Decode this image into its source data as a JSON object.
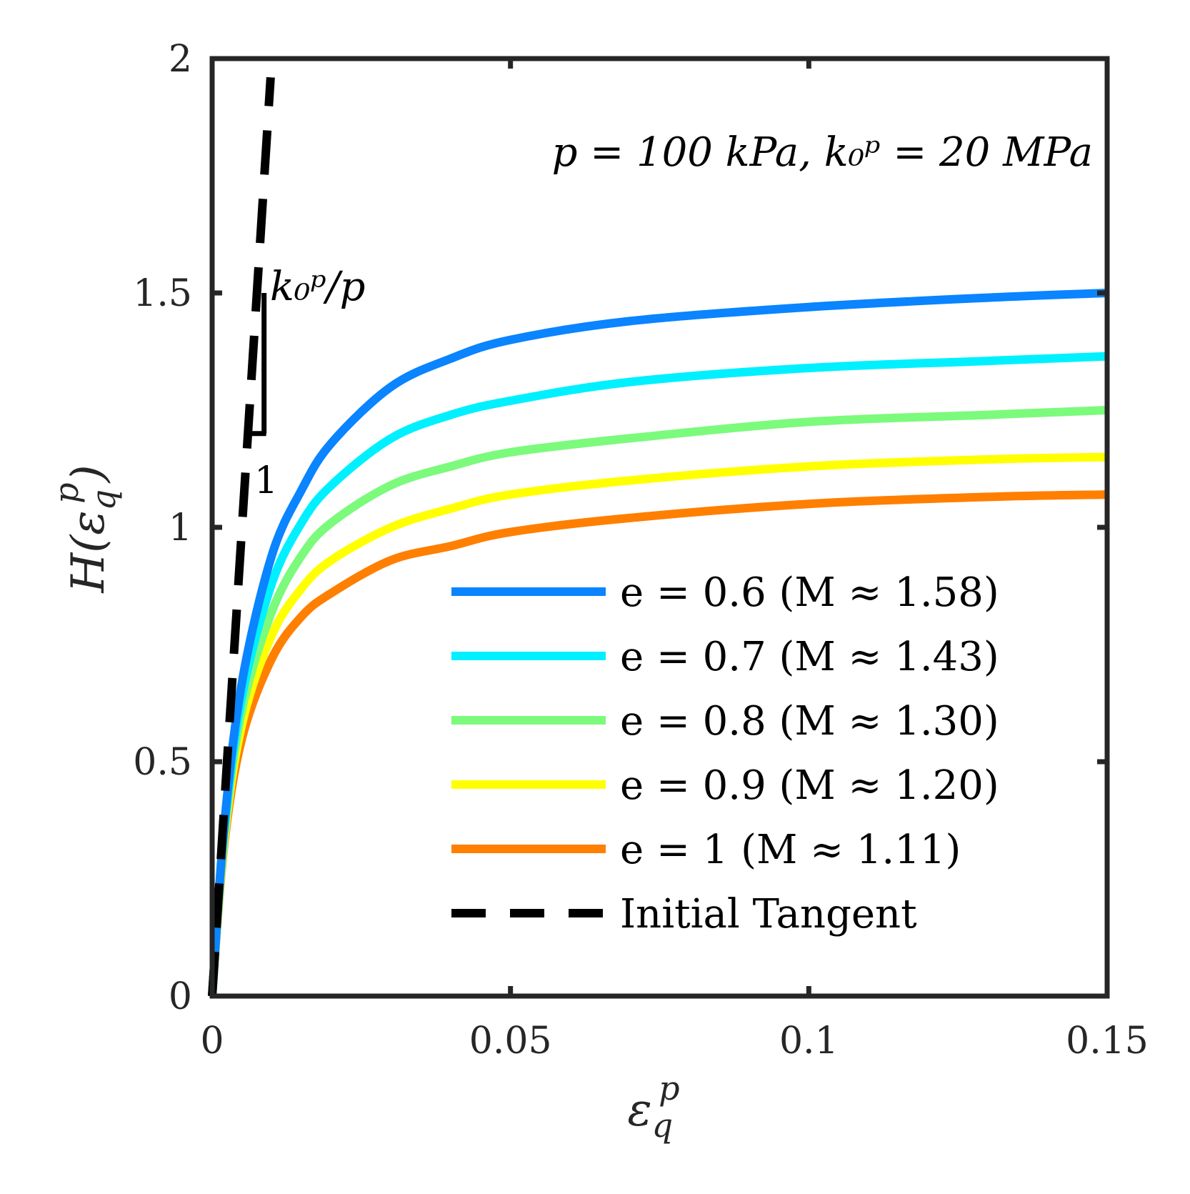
{
  "chart_data": {
    "type": "line",
    "title": "",
    "xlabel": {
      "base": "ε",
      "sub": "q",
      "sup": "p"
    },
    "ylabel": {
      "prefix": "H(",
      "base": "ε",
      "sub": "q",
      "sup": "p",
      "suffix": ")"
    },
    "xlim": [
      0,
      0.15
    ],
    "ylim": [
      0,
      2
    ],
    "xticks": [
      0,
      0.05,
      0.1,
      0.15
    ],
    "xtick_labels": [
      "0",
      "0.05",
      "0.1",
      "0.15"
    ],
    "yticks": [
      0,
      0.5,
      1,
      1.5,
      2
    ],
    "ytick_labels": [
      "0",
      "0.5",
      "1",
      "1.5",
      "2"
    ],
    "grid": false,
    "legend_position": "bottom-right",
    "series": [
      {
        "name": "e = 0.6 (M ≈ 1.58)",
        "color": "#0A84FF",
        "kind": "curve",
        "M": 1.58,
        "x": [
          0,
          0.002,
          0.005,
          0.01,
          0.015,
          0.02,
          0.03,
          0.04,
          0.05,
          0.07,
          0.1,
          0.13,
          0.15
        ],
        "y": [
          0,
          0.36,
          0.67,
          0.94,
          1.08,
          1.18,
          1.3,
          1.36,
          1.4,
          1.44,
          1.47,
          1.49,
          1.5
        ]
      },
      {
        "name": "e = 0.7 (M ≈ 1.43)",
        "color": "#00F0FF",
        "kind": "curve",
        "M": 1.43,
        "x": [
          0,
          0.002,
          0.005,
          0.01,
          0.015,
          0.02,
          0.03,
          0.04,
          0.05,
          0.07,
          0.1,
          0.13,
          0.15
        ],
        "y": [
          0,
          0.35,
          0.64,
          0.88,
          1.01,
          1.09,
          1.19,
          1.24,
          1.27,
          1.31,
          1.34,
          1.355,
          1.365
        ]
      },
      {
        "name": "e = 0.8 (M ≈ 1.30)",
        "color": "#7CFA7C",
        "kind": "curve",
        "M": 1.3,
        "x": [
          0,
          0.002,
          0.005,
          0.01,
          0.015,
          0.02,
          0.03,
          0.04,
          0.05,
          0.07,
          0.1,
          0.13,
          0.15
        ],
        "y": [
          0,
          0.34,
          0.61,
          0.82,
          0.94,
          1.01,
          1.09,
          1.13,
          1.16,
          1.19,
          1.225,
          1.24,
          1.25
        ]
      },
      {
        "name": "e = 0.9 (M ≈ 1.20)",
        "color": "#FFFF00",
        "kind": "curve",
        "M": 1.2,
        "x": [
          0,
          0.002,
          0.005,
          0.01,
          0.015,
          0.02,
          0.03,
          0.04,
          0.05,
          0.07,
          0.1,
          0.13,
          0.15
        ],
        "y": [
          0,
          0.33,
          0.58,
          0.77,
          0.87,
          0.93,
          1.0,
          1.04,
          1.07,
          1.1,
          1.13,
          1.145,
          1.15
        ]
      },
      {
        "name": "e = 1 (M ≈ 1.11)",
        "color": "#FF7F00",
        "kind": "curve",
        "M": 1.11,
        "x": [
          0,
          0.002,
          0.005,
          0.01,
          0.015,
          0.02,
          0.03,
          0.04,
          0.05,
          0.07,
          0.1,
          0.13,
          0.15
        ],
        "y": [
          0,
          0.32,
          0.55,
          0.72,
          0.81,
          0.86,
          0.93,
          0.96,
          0.99,
          1.02,
          1.05,
          1.065,
          1.07
        ]
      },
      {
        "name": "Initial Tangent",
        "color": "#000000",
        "kind": "dashed",
        "x": [
          0,
          0.0098
        ],
        "y": [
          0,
          1.96
        ]
      }
    ],
    "annotations": {
      "params": "p = 100 kPa, k₀ᵖ = 20 MPa",
      "slope_label": "k₀ᵖ/p",
      "slope_run_label": "1",
      "slope_triangle": {
        "x0": 0.0087,
        "y_bottom": 1.2,
        "y_top": 1.5
      }
    }
  }
}
